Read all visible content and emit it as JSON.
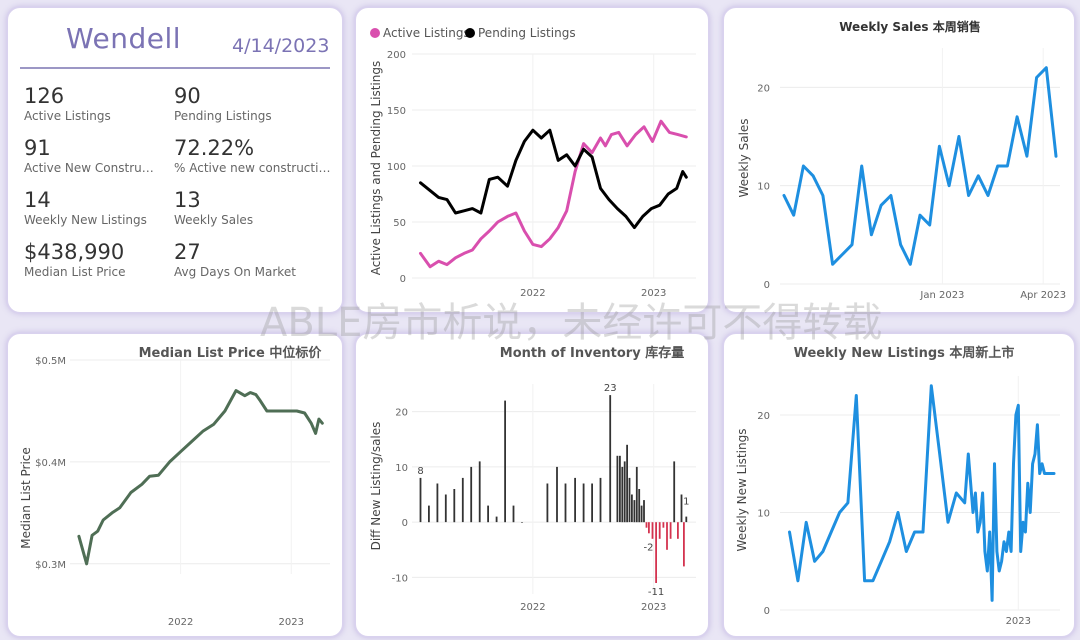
{
  "summary": {
    "city": "Wendell",
    "date": "4/14/2023",
    "kpis": [
      {
        "value": "126",
        "label": "Active Listings"
      },
      {
        "value": "90",
        "label": "Pending Listings"
      },
      {
        "value": "91",
        "label": "Active New Constructi..."
      },
      {
        "value": "72.22%",
        "label": "% Active new constructions"
      },
      {
        "value": "14",
        "label": "Weekly New Listings"
      },
      {
        "value": "13",
        "label": "Weekly Sales"
      },
      {
        "value": "$438,990",
        "label": "Median List Price"
      },
      {
        "value": "27",
        "label": "Avg Days On Market"
      }
    ]
  },
  "watermark": "ABLE房市析说，未经许可不得转载",
  "chart_data": [
    {
      "id": "active_pending",
      "type": "line",
      "title": "",
      "xlabel": "",
      "ylabel": "Active Listings and Pending Listings",
      "ylim": [
        0,
        200
      ],
      "yticks": [
        "0",
        "50",
        "100",
        "150",
        "200"
      ],
      "xticks": [
        "2022",
        "2023"
      ],
      "x_range": [
        2021.0,
        2023.35
      ],
      "legend_placement": "top-left",
      "series": [
        {
          "name": "Active Listings",
          "color": "#d94fae",
          "x": [
            2021.07,
            2021.15,
            2021.22,
            2021.29,
            2021.36,
            2021.43,
            2021.5,
            2021.57,
            2021.64,
            2021.71,
            2021.79,
            2021.86,
            2021.93,
            2022.0,
            2022.07,
            2022.14,
            2022.21,
            2022.28,
            2022.35,
            2022.42,
            2022.49,
            2022.56,
            2022.6,
            2022.65,
            2022.71,
            2022.78,
            2022.85,
            2022.92,
            2022.99,
            2023.06,
            2023.13,
            2023.2,
            2023.27
          ],
          "y": [
            22,
            10,
            15,
            12,
            18,
            22,
            25,
            35,
            42,
            50,
            55,
            58,
            42,
            30,
            28,
            35,
            45,
            60,
            95,
            120,
            112,
            125,
            118,
            128,
            130,
            118,
            128,
            135,
            122,
            140,
            130,
            128,
            126
          ]
        },
        {
          "name": "Pending Listings",
          "color": "#000000",
          "x": [
            2021.07,
            2021.15,
            2021.22,
            2021.29,
            2021.36,
            2021.43,
            2021.5,
            2021.57,
            2021.64,
            2021.71,
            2021.79,
            2021.86,
            2021.93,
            2022.0,
            2022.07,
            2022.14,
            2022.21,
            2022.28,
            2022.35,
            2022.42,
            2022.49,
            2022.56,
            2022.63,
            2022.7,
            2022.77,
            2022.84,
            2022.91,
            2022.98,
            2023.05,
            2023.12,
            2023.19,
            2023.24,
            2023.27
          ],
          "y": [
            85,
            78,
            72,
            70,
            58,
            60,
            62,
            58,
            88,
            90,
            82,
            105,
            122,
            132,
            125,
            132,
            105,
            110,
            100,
            115,
            108,
            80,
            70,
            62,
            55,
            45,
            55,
            62,
            65,
            75,
            80,
            95,
            90
          ]
        }
      ]
    },
    {
      "id": "weekly_sales",
      "type": "line",
      "title": "Weekly Sales 本周销售",
      "xlabel": "",
      "ylabel": "Weekly Sales",
      "ylim": [
        0,
        24
      ],
      "yticks": [
        "0",
        "10",
        "20"
      ],
      "xticks": [
        "Jan 2023",
        "Apr 2023"
      ],
      "series": [
        {
          "name": "",
          "color": "#1e8fe0",
          "values": [
            9,
            7,
            12,
            11,
            9,
            2,
            3,
            4,
            12,
            5,
            8,
            9,
            4,
            2,
            7,
            6,
            14,
            10,
            15,
            9,
            11,
            9,
            12,
            12,
            17,
            13,
            21,
            22,
            13
          ]
        }
      ]
    },
    {
      "id": "median_price",
      "type": "line",
      "title": "Median List Price  中位标价",
      "xlabel": "",
      "ylabel": "Median List Price",
      "ylim": [
        0.29,
        0.5
      ],
      "yticks": [
        "$0.3M",
        "$0.4M",
        "$0.5M"
      ],
      "xticks": [
        "2022",
        "2023"
      ],
      "x_range": [
        2021.0,
        2023.35
      ],
      "series": [
        {
          "name": "",
          "color": "#4f6e55",
          "x": [
            2021.08,
            2021.15,
            2021.2,
            2021.25,
            2021.3,
            2021.38,
            2021.45,
            2021.55,
            2021.65,
            2021.72,
            2021.8,
            2021.9,
            2022.0,
            2022.1,
            2022.2,
            2022.3,
            2022.4,
            2022.5,
            2022.58,
            2022.63,
            2022.68,
            2022.72,
            2022.78,
            2022.85,
            2022.95,
            2023.05,
            2023.12,
            2023.18,
            2023.22,
            2023.25,
            2023.28
          ],
          "y": [
            0.327,
            0.3,
            0.328,
            0.332,
            0.343,
            0.35,
            0.355,
            0.37,
            0.378,
            0.386,
            0.387,
            0.4,
            0.41,
            0.42,
            0.43,
            0.437,
            0.45,
            0.47,
            0.465,
            0.468,
            0.466,
            0.46,
            0.45,
            0.45,
            0.45,
            0.45,
            0.448,
            0.438,
            0.428,
            0.442,
            0.438
          ]
        }
      ]
    },
    {
      "id": "month_inventory",
      "type": "bar",
      "title": "Month of Inventory 库存量",
      "xlabel": "",
      "ylabel": "Diff New Listing/sales",
      "ylim": [
        -13,
        25
      ],
      "yticks": [
        "-10",
        "0",
        "10",
        "20"
      ],
      "xticks": [
        "2022",
        "2023"
      ],
      "x_range": [
        2021.0,
        2023.35
      ],
      "positive_color": "#333333",
      "negative_color": "#d4334f",
      "data_labels": [
        {
          "x": 2021.07,
          "text": "8"
        },
        {
          "x": 2022.64,
          "text": "23"
        },
        {
          "x": 2022.99,
          "text": "-2"
        },
        {
          "x": 2023.02,
          "text": "-11"
        },
        {
          "x": 2023.27,
          "text": "1"
        }
      ],
      "x": [
        2021.07,
        2021.14,
        2021.21,
        2021.28,
        2021.35,
        2021.42,
        2021.49,
        2021.56,
        2021.63,
        2021.7,
        2021.77,
        2021.84,
        2021.91,
        2022.12,
        2022.2,
        2022.27,
        2022.35,
        2022.42,
        2022.49,
        2022.56,
        2022.64,
        2022.7,
        2022.72,
        2022.74,
        2022.76,
        2022.78,
        2022.8,
        2022.82,
        2022.84,
        2022.86,
        2022.88,
        2022.9,
        2022.92,
        2022.94,
        2022.96,
        2022.99,
        2023.02,
        2023.05,
        2023.08,
        2023.11,
        2023.14,
        2023.17,
        2023.2,
        2023.23,
        2023.25,
        2023.27
      ],
      "values": [
        8,
        3,
        7,
        5,
        6,
        8,
        10,
        11,
        3,
        1,
        22,
        3,
        0,
        7,
        10,
        7,
        8,
        7,
        7,
        8,
        23,
        12,
        12,
        10,
        11,
        14,
        8,
        5,
        4,
        10,
        6,
        3,
        4,
        -1,
        -2,
        -3,
        -11,
        -3,
        -1,
        -5,
        -3,
        11,
        -3,
        5,
        -8,
        1
      ]
    },
    {
      "id": "weekly_new_listings",
      "type": "line",
      "title": "Weekly New Listings  本周新上市",
      "xlabel": "",
      "ylabel": "Weekly New Listings",
      "ylim": [
        0,
        24
      ],
      "yticks": [
        "0",
        "10",
        "20"
      ],
      "xticks": [
        "2023"
      ],
      "x_range": [
        2021.0,
        2023.35
      ],
      "series": [
        {
          "name": "",
          "color": "#1e8fe0",
          "x": [
            2021.08,
            2021.15,
            2021.22,
            2021.29,
            2021.36,
            2021.43,
            2021.5,
            2021.57,
            2021.64,
            2021.71,
            2021.78,
            2021.85,
            2021.92,
            2021.99,
            2022.06,
            2022.13,
            2022.2,
            2022.27,
            2022.34,
            2022.41,
            2022.48,
            2022.55,
            2022.58,
            2022.62,
            2022.64,
            2022.66,
            2022.68,
            2022.7,
            2022.72,
            2022.74,
            2022.76,
            2022.78,
            2022.8,
            2022.82,
            2022.84,
            2022.86,
            2022.88,
            2022.9,
            2022.92,
            2022.94,
            2022.96,
            2022.98,
            2023.0,
            2023.02,
            2023.04,
            2023.06,
            2023.08,
            2023.1,
            2023.12,
            2023.14,
            2023.16,
            2023.18,
            2023.2,
            2023.22,
            2023.24,
            2023.26,
            2023.28,
            2023.3
          ],
          "y": [
            8,
            3,
            9,
            5,
            6,
            8,
            10,
            11,
            22,
            3,
            3,
            5,
            7,
            10,
            6,
            8,
            8,
            23,
            16,
            9,
            12,
            11,
            16,
            10,
            12,
            8,
            9,
            12,
            6,
            4,
            8,
            1,
            15,
            6,
            4,
            5,
            7,
            6,
            8,
            6,
            15,
            20,
            21,
            6,
            9,
            8,
            13,
            10,
            15,
            16,
            19,
            14,
            15,
            14,
            14,
            14,
            14,
            14
          ]
        }
      ]
    }
  ]
}
